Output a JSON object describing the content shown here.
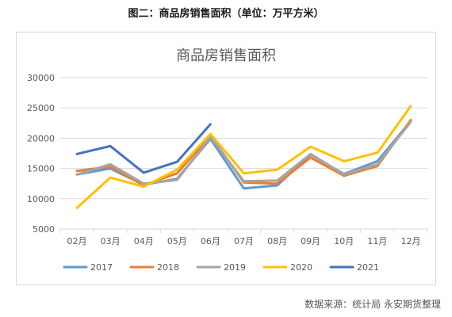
{
  "figure_title": "图二：商品房销售面积（单位：万平方米）",
  "source": "数据来源：统计局  永安期货整理",
  "colors": {
    "2017": "#5b9bd5",
    "2018": "#ed7d31",
    "2019": "#a5a5a5",
    "2020": "#ffc000",
    "2021": "#4472c4",
    "grid": "#d9d9d9",
    "title": "#595959",
    "ticks": "#595959"
  },
  "chart_data": {
    "type": "line",
    "title": "商品房销售面积",
    "xlabel": "",
    "ylabel": "",
    "categories": [
      "02月",
      "03月",
      "04月",
      "05月",
      "06月",
      "07月",
      "08月",
      "09月",
      "10月",
      "11月",
      "12月"
    ],
    "ylim": [
      5000,
      30000
    ],
    "yticks": [
      5000,
      10000,
      15000,
      20000,
      25000,
      30000
    ],
    "grid": true,
    "legend_position": "bottom",
    "series": [
      {
        "name": "2017",
        "values": [
          14000,
          15000,
          12300,
          13300,
          19900,
          11700,
          12200,
          17300,
          14100,
          16200,
          22800
        ]
      },
      {
        "name": "2018",
        "values": [
          14600,
          15300,
          12200,
          14200,
          20400,
          12700,
          12500,
          16800,
          13800,
          15400,
          23000
        ]
      },
      {
        "name": "2019",
        "values": [
          14000,
          15700,
          12500,
          13100,
          20200,
          12900,
          13000,
          17400,
          14000,
          15700,
          22700
        ]
      },
      {
        "name": "2020",
        "values": [
          8500,
          13500,
          12000,
          14800,
          20700,
          14200,
          14800,
          18600,
          16200,
          17600,
          25300
        ]
      },
      {
        "name": "2021",
        "values": [
          17400,
          18700,
          14300,
          16100,
          22300,
          null,
          null,
          null,
          null,
          null,
          null
        ]
      }
    ]
  }
}
